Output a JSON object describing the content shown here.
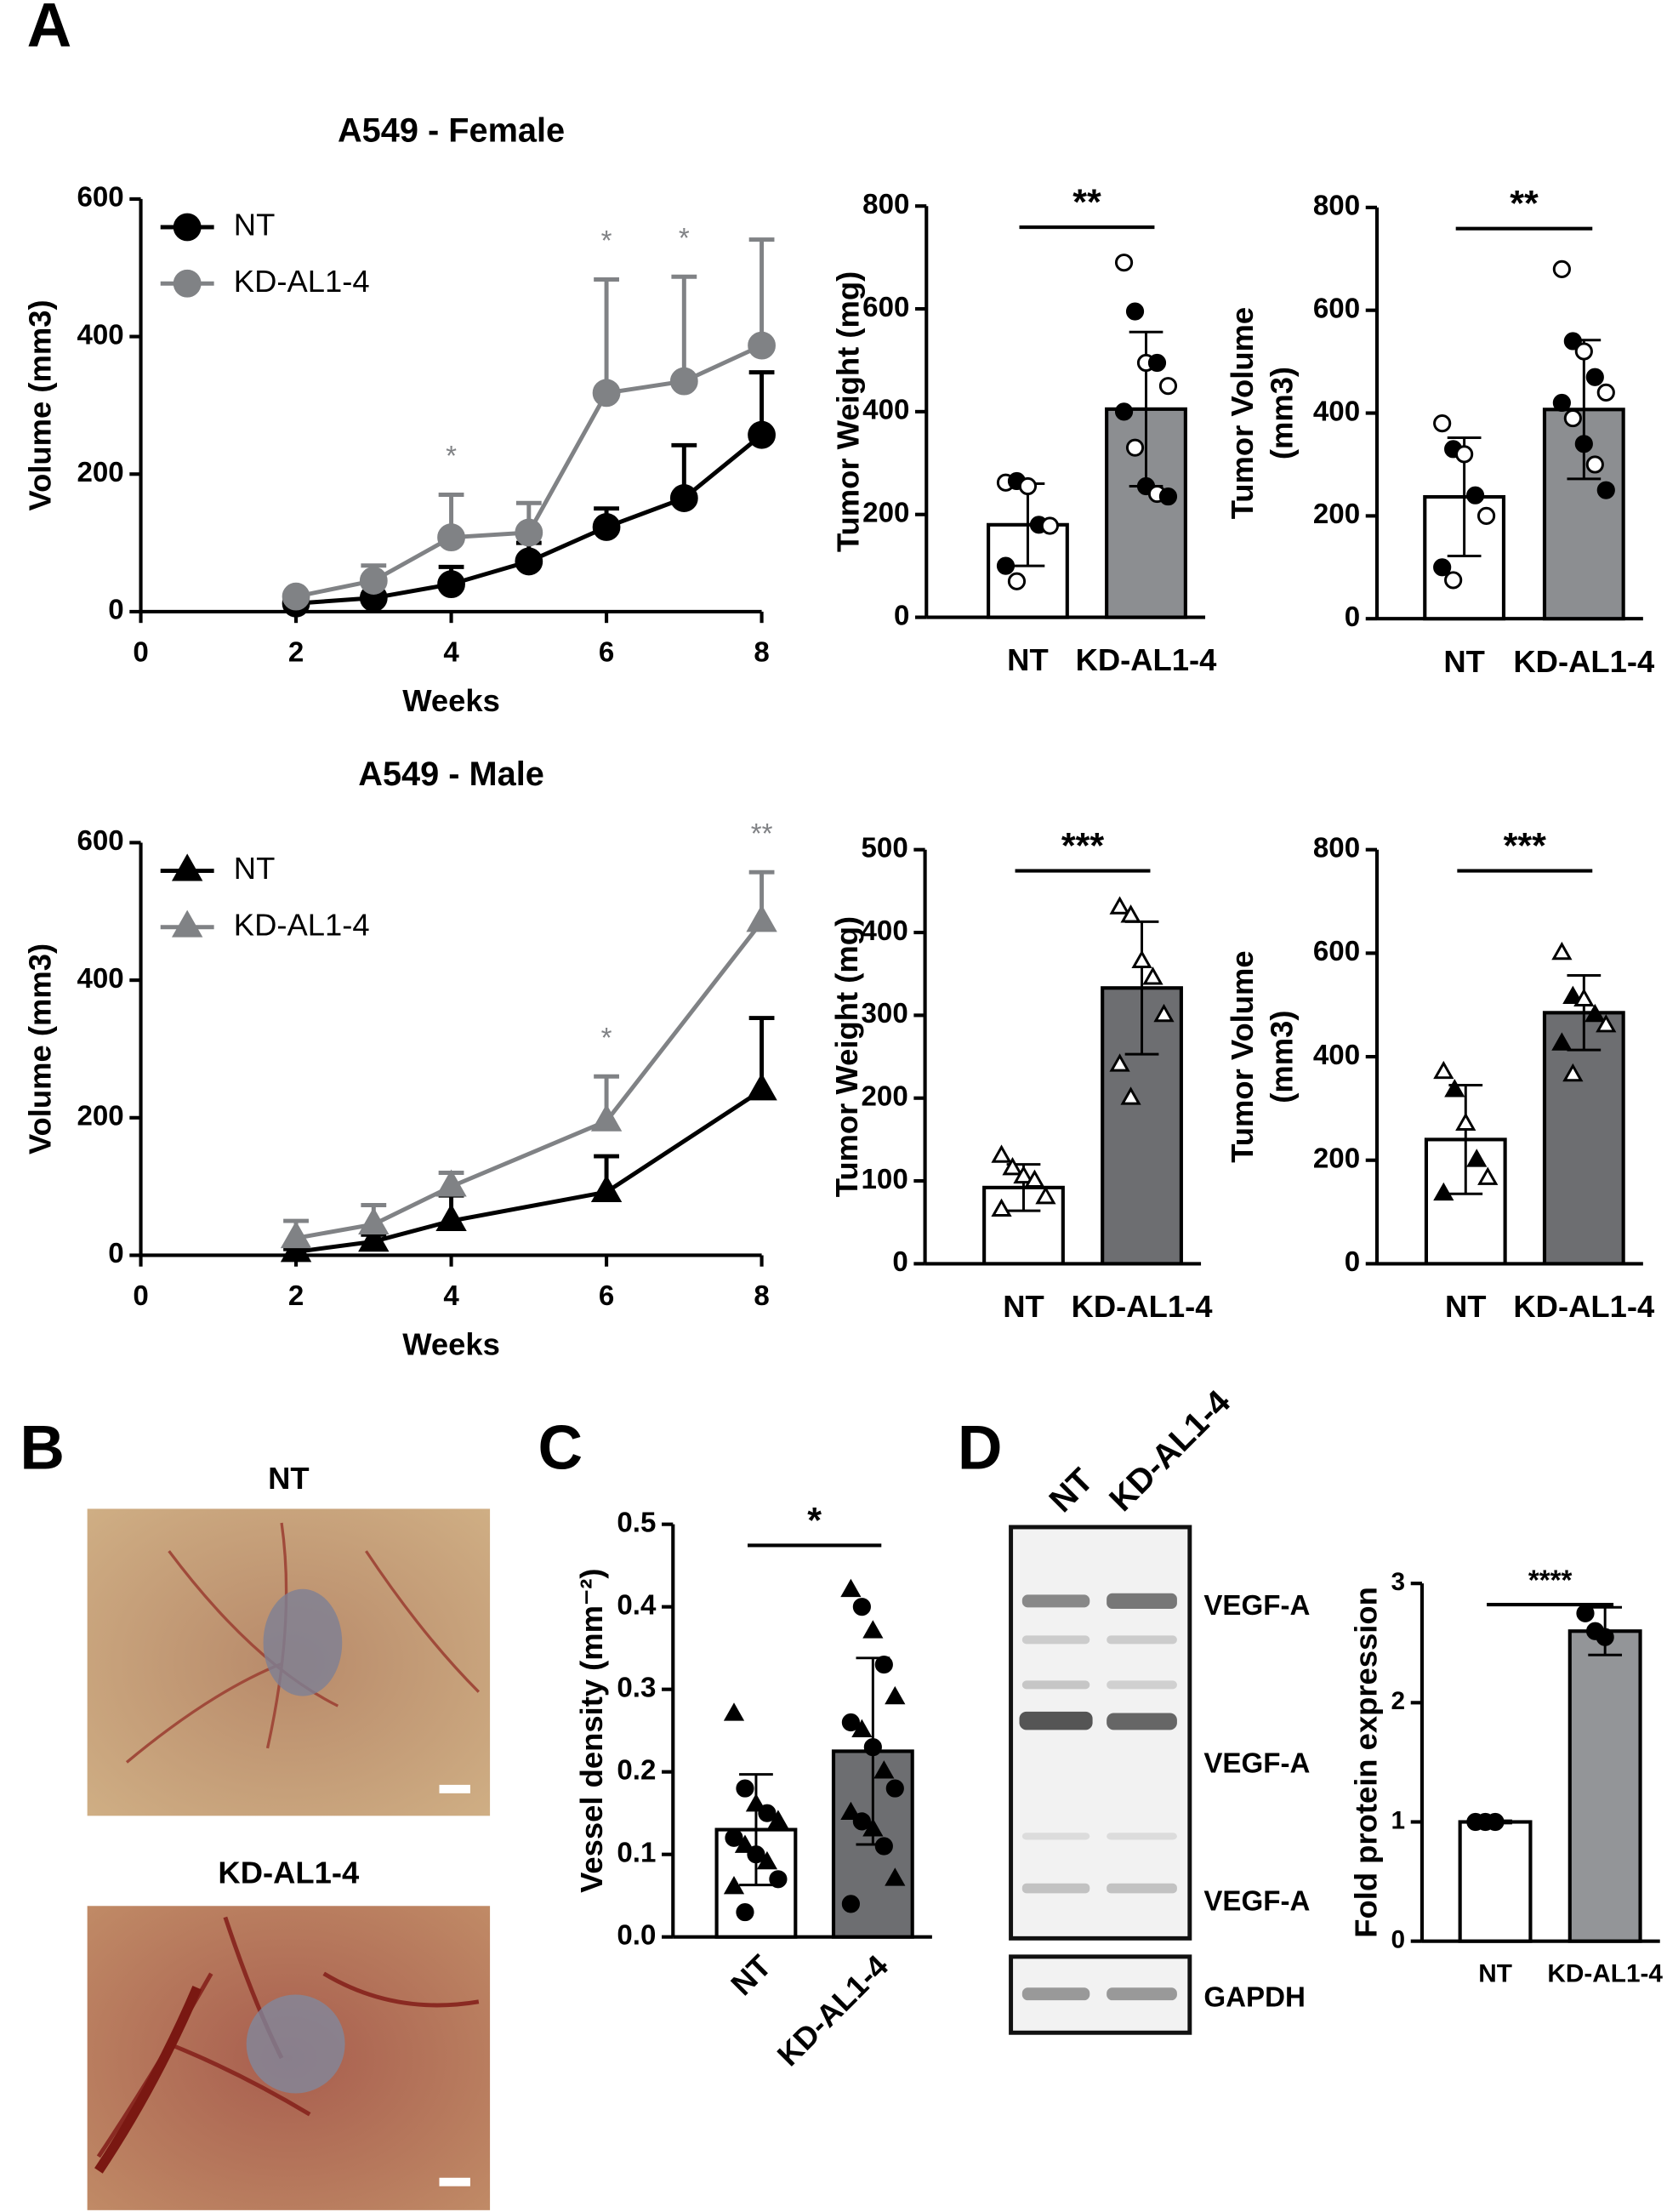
{
  "panels": {
    "a": "A",
    "b": "B",
    "c": "C",
    "d": "D"
  },
  "photos": {
    "labels": [
      "NT",
      "KD-AL1-4"
    ]
  },
  "blot": {
    "lanes": [
      "NT",
      "KD-AL1-4"
    ],
    "bands": [
      "VEGF-A",
      "VEGF-A",
      "VEGF-A"
    ],
    "loading": "GAPDH"
  },
  "chart_data": [
    {
      "type": "line",
      "title": "A549 - Female",
      "x_label": "Weeks",
      "y_label": "Volume (mm3)",
      "marker": "circle",
      "x": [
        2,
        3,
        4,
        5,
        6,
        7,
        8
      ],
      "xlim": [
        0,
        8
      ],
      "xticks": [
        0,
        2,
        4,
        6,
        8
      ],
      "ylim": [
        0,
        600
      ],
      "yticks": [
        0,
        200,
        400,
        600
      ],
      "series": [
        {
          "name": "NT",
          "color": "#000000",
          "values": [
            12,
            20,
            40,
            73,
            123,
            165,
            257
          ],
          "errors": [
            4,
            5,
            25,
            27,
            27,
            77,
            91
          ]
        },
        {
          "name": "KD-AL1-4",
          "color": "#808285",
          "values": [
            22,
            45,
            108,
            115,
            318,
            335,
            387
          ],
          "errors": [
            5,
            22,
            62,
            43,
            165,
            152,
            154
          ]
        }
      ],
      "annotations": [
        {
          "x": 4,
          "text": "*"
        },
        {
          "x": 6,
          "text": "*"
        },
        {
          "x": 7,
          "text": "*"
        }
      ]
    },
    {
      "type": "bar",
      "y_label": "Tumor Weight (mg)",
      "categories": [
        "NT",
        "KD-AL1-4"
      ],
      "values": [
        180,
        405
      ],
      "errors": [
        80,
        150
      ],
      "colors": [
        "#ffffff",
        "#8c8e91"
      ],
      "marker": "circle",
      "point_fill": "mixed",
      "points": [
        [
          262,
          265,
          255,
          180,
          178,
          100,
          70
        ],
        [
          690,
          595,
          495,
          495,
          450,
          400,
          330,
          255,
          240,
          235
        ]
      ],
      "ylim": [
        0,
        800
      ],
      "yticks": [
        0,
        200,
        400,
        600,
        800
      ],
      "significance": "**"
    },
    {
      "type": "bar",
      "y_label": [
        "Tumor Volume",
        "(mm3)"
      ],
      "categories": [
        "NT",
        "KD-AL1-4"
      ],
      "values": [
        237,
        407
      ],
      "errors": [
        115,
        135
      ],
      "colors": [
        "#ffffff",
        "#8c8e91"
      ],
      "marker": "circle",
      "point_fill": "mixed",
      "points": [
        [
          380,
          330,
          320,
          240,
          200,
          100,
          75
        ],
        [
          680,
          540,
          520,
          470,
          440,
          420,
          390,
          340,
          300,
          250
        ]
      ],
      "ylim": [
        0,
        800
      ],
      "yticks": [
        0,
        200,
        400,
        600,
        800
      ],
      "significance": "**"
    },
    {
      "type": "line",
      "title": "A549 - Male",
      "x_label": "Weeks",
      "y_label": "Volume (mm3)",
      "marker": "triangle",
      "x": [
        2,
        3,
        4,
        6,
        8
      ],
      "xlim": [
        0,
        8
      ],
      "xticks": [
        0,
        2,
        4,
        6,
        8
      ],
      "ylim": [
        0,
        600
      ],
      "yticks": [
        0,
        200,
        400,
        600
      ],
      "series": [
        {
          "name": "NT",
          "color": "#000000",
          "values": [
            5,
            20,
            50,
            92,
            240
          ],
          "errors": [
            4,
            10,
            37,
            52,
            105
          ]
        },
        {
          "name": "KD-AL1-4",
          "color": "#808285",
          "values": [
            25,
            45,
            100,
            195,
            485
          ],
          "errors": [
            25,
            28,
            20,
            65,
            72
          ]
        }
      ],
      "annotations": [
        {
          "x": 6,
          "text": "*"
        },
        {
          "x": 8,
          "text": "**"
        }
      ]
    },
    {
      "type": "bar",
      "y_label": "Tumor Weight (mg)",
      "categories": [
        "NT",
        "KD-AL1-4"
      ],
      "values": [
        92,
        333
      ],
      "errors": [
        28,
        80
      ],
      "colors": [
        "#ffffff",
        "#6d6e71"
      ],
      "marker": "triangle",
      "point_fill": "open",
      "points": [
        [
          130,
          115,
          105,
          100,
          80,
          65
        ],
        [
          430,
          420,
          365,
          345,
          300,
          240,
          200
        ]
      ],
      "ylim": [
        0,
        500
      ],
      "yticks": [
        0,
        100,
        200,
        300,
        400,
        500
      ],
      "significance": "***"
    },
    {
      "type": "bar",
      "y_label": [
        "Tumor Volume",
        "(mm3)"
      ],
      "categories": [
        "NT",
        "KD-AL1-4"
      ],
      "values": [
        240,
        485
      ],
      "errors": [
        105,
        72
      ],
      "colors": [
        "#ffffff",
        "#6d6e71"
      ],
      "marker": "triangle",
      "point_fill": "mixed",
      "points": [
        [
          370,
          335,
          270,
          200,
          165,
          135
        ],
        [
          600,
          515,
          510,
          480,
          460,
          425,
          365
        ]
      ],
      "ylim": [
        0,
        800
      ],
      "yticks": [
        0,
        200,
        400,
        600,
        800
      ],
      "significance": "***"
    },
    {
      "type": "bar",
      "y_label": "Vessel density (mm⁻²)",
      "categories": [
        "NT",
        "KD-AL1-4"
      ],
      "values": [
        0.13,
        0.225
      ],
      "errors": [
        0.067,
        0.113
      ],
      "colors": [
        "#ffffff",
        "#6d6e71"
      ],
      "marker": "mixed",
      "point_fill": "filled",
      "points": [
        [
          0.27,
          0.18,
          0.16,
          0.15,
          0.14,
          0.12,
          0.11,
          0.1,
          0.09,
          0.07,
          0.06,
          0.03
        ],
        [
          0.42,
          0.4,
          0.37,
          0.33,
          0.29,
          0.26,
          0.25,
          0.23,
          0.2,
          0.18,
          0.15,
          0.14,
          0.13,
          0.11,
          0.07,
          0.04
        ]
      ],
      "ylim": [
        0,
        0.5
      ],
      "yticks": [
        {
          "value": 0,
          "label": "0.0"
        },
        0.1,
        0.2,
        0.3,
        0.4,
        0.5
      ],
      "significance": "*"
    },
    {
      "type": "bar",
      "y_label": "Fold protein expression",
      "categories": [
        "NT",
        "KD-AL1-4"
      ],
      "values": [
        1,
        2.6
      ],
      "errors": [
        0.01,
        0.2
      ],
      "colors": [
        "#ffffff",
        "#939598"
      ],
      "marker": "circle",
      "point_fill": "filled",
      "points": [
        [
          1,
          1,
          1
        ],
        [
          2.75,
          2.6,
          2.55
        ]
      ],
      "ylim": [
        0,
        3
      ],
      "yticks": [
        0,
        1,
        2,
        3
      ],
      "significance": "****"
    }
  ]
}
